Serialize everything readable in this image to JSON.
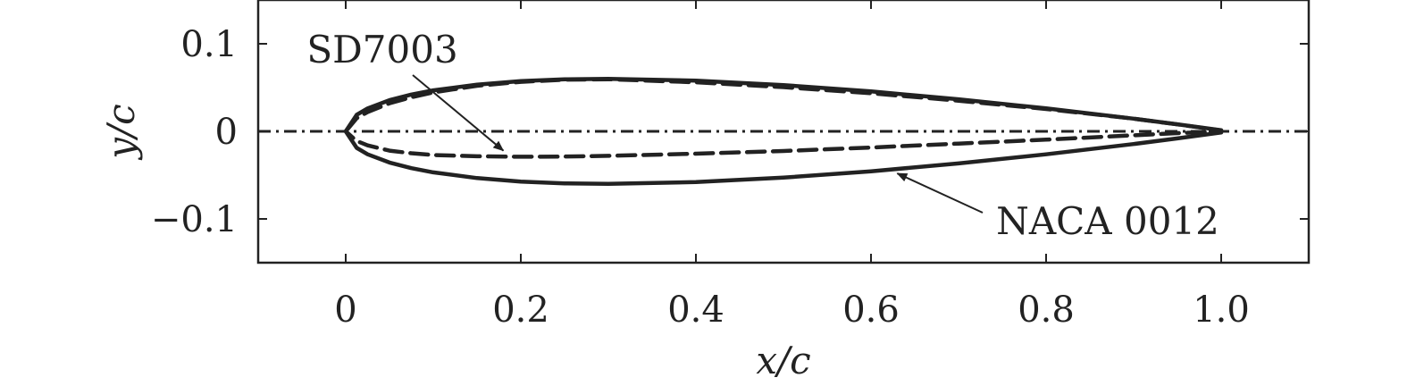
{
  "chart_data": {
    "type": "line",
    "xlabel": "x/c",
    "ylabel": "y/c",
    "xlim": [
      -0.1,
      1.1
    ],
    "ylim": [
      -0.15,
      0.15
    ],
    "xticks": [
      0,
      0.2,
      0.4,
      0.6,
      0.8,
      1.0
    ],
    "xtick_labels": [
      "0",
      "0.2",
      "0.4",
      "0.6",
      "0.8",
      "1.0"
    ],
    "yticks": [
      -0.1,
      0,
      0.1
    ],
    "ytick_labels": [
      "−0.1",
      "0",
      "0.1"
    ],
    "grid": false,
    "series": [
      {
        "name": "NACA 0012",
        "style": "solid",
        "color": "#222222",
        "x": [
          0,
          0.0125,
          0.025,
          0.05,
          0.075,
          0.1,
          0.15,
          0.2,
          0.25,
          0.3,
          0.4,
          0.5,
          0.6,
          0.7,
          0.8,
          0.9,
          0.95,
          1.0
        ],
        "y_upper": [
          0,
          0.0189,
          0.0262,
          0.0356,
          0.042,
          0.0468,
          0.0534,
          0.0574,
          0.0594,
          0.06,
          0.058,
          0.0529,
          0.0456,
          0.0366,
          0.0262,
          0.0145,
          0.0081,
          0.0013
        ],
        "y_lower": [
          0,
          -0.0189,
          -0.0262,
          -0.0356,
          -0.042,
          -0.0468,
          -0.0534,
          -0.0574,
          -0.0594,
          -0.06,
          -0.058,
          -0.0529,
          -0.0456,
          -0.0366,
          -0.0262,
          -0.0145,
          -0.0081,
          -0.0013
        ]
      },
      {
        "name": "SD7003",
        "style": "dashed",
        "color": "#222222",
        "x": [
          0,
          0.0125,
          0.025,
          0.05,
          0.075,
          0.1,
          0.15,
          0.2,
          0.25,
          0.3,
          0.4,
          0.5,
          0.6,
          0.7,
          0.8,
          0.9,
          0.95,
          1.0
        ],
        "y_upper": [
          0,
          0.015,
          0.022,
          0.032,
          0.039,
          0.0445,
          0.052,
          0.0565,
          0.059,
          0.0595,
          0.056,
          0.0505,
          0.0435,
          0.035,
          0.0255,
          0.0145,
          0.008,
          0.001
        ],
        "y_lower": [
          0,
          -0.011,
          -0.016,
          -0.022,
          -0.025,
          -0.027,
          -0.0285,
          -0.029,
          -0.0288,
          -0.028,
          -0.0255,
          -0.0225,
          -0.0185,
          -0.014,
          -0.0095,
          -0.0045,
          -0.002,
          0
        ]
      }
    ],
    "reference_line": {
      "y": 0,
      "style": "dash-dot"
    },
    "annotations": [
      {
        "text": "SD7003",
        "target_series": "SD7003",
        "target": [
          0.18,
          -0.022
        ]
      },
      {
        "text": "NACA 0012",
        "target_series": "NACA 0012",
        "target": [
          0.63,
          -0.048
        ]
      }
    ]
  }
}
